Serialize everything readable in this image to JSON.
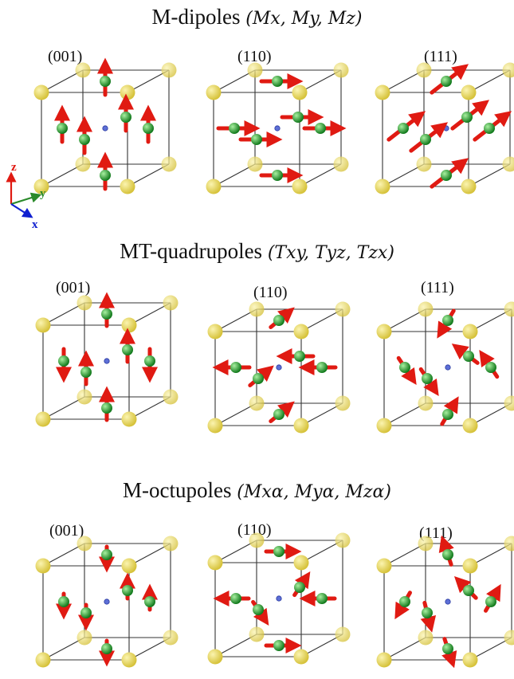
{
  "sections": [
    {
      "title_text": "M-dipoles",
      "title_math": "(Mx, My, Mz)",
      "panels": [
        {
          "label": "(001)",
          "arrows": "z"
        },
        {
          "label": "(110)",
          "arrows": "y"
        },
        {
          "label": "(111)",
          "arrows": "d"
        }
      ]
    },
    {
      "title_text": "MT-quadrupoles",
      "title_math": "(Txy, Tyz, Tzx)",
      "panels": [
        {
          "label": "(001)",
          "arrows": "qz"
        },
        {
          "label": "(110)",
          "arrows": "qy"
        },
        {
          "label": "(111)",
          "arrows": "qd"
        }
      ]
    },
    {
      "title_text": "M-octupoles",
      "title_math": "(Mxα, Myα, Mzα)",
      "panels": [
        {
          "label": "(001)",
          "arrows": "oz"
        },
        {
          "label": "(110)",
          "arrows": "oy"
        },
        {
          "label": "(111)",
          "arrows": "od"
        }
      ]
    }
  ],
  "axes": {
    "z": "z",
    "y": "y",
    "x": "x"
  },
  "colors": {
    "corner_atom": "#d6c23a",
    "face_atom": "#2fae3a",
    "center_atom": "#5d6fd6",
    "arrow": "#e01a12",
    "edge": "#333333",
    "axis_z": "#e01a12",
    "axis_y": "#2a8a2a",
    "axis_x": "#1020d0"
  }
}
